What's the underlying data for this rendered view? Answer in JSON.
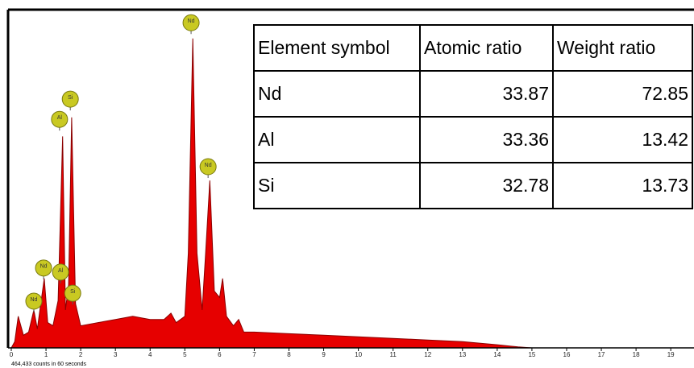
{
  "chart_data": {
    "type": "area",
    "color": "#e60000",
    "x": [
      0,
      0.1,
      0.2,
      0.35,
      0.5,
      0.65,
      0.75,
      0.85,
      0.95,
      1.05,
      1.2,
      1.35,
      1.48,
      1.56,
      1.65,
      1.74,
      1.85,
      2.0,
      2.5,
      3.0,
      3.5,
      4.0,
      4.4,
      4.6,
      4.75,
      5.0,
      5.1,
      5.23,
      5.35,
      5.5,
      5.6,
      5.72,
      5.85,
      6.0,
      6.09,
      6.2,
      6.4,
      6.55,
      6.7,
      7,
      8,
      9,
      10,
      11,
      12,
      13,
      14,
      14.6,
      15,
      19.6
    ],
    "values": [
      0,
      2,
      10,
      4,
      5,
      12,
      6,
      14,
      22,
      8,
      7,
      15,
      67,
      12,
      20,
      73,
      14,
      7,
      8,
      9,
      10,
      9,
      9,
      11,
      8,
      10,
      30,
      98,
      30,
      12,
      30,
      53,
      18,
      16,
      22,
      10,
      7,
      9,
      5,
      5,
      4.5,
      4,
      3.5,
      3,
      2.5,
      2,
      1,
      0.3,
      0,
      0
    ],
    "xlim": [
      0,
      19.6
    ],
    "ylim": [
      0,
      100
    ],
    "xticks": [
      0,
      1,
      2,
      3,
      4,
      5,
      6,
      7,
      8,
      9,
      10,
      11,
      12,
      13,
      14,
      15,
      16,
      17,
      18,
      19
    ],
    "annotations": [
      {
        "text": "Nd",
        "x": 0.65,
        "y": 14.8
      },
      {
        "text": "Nd",
        "x": 0.93,
        "y": 25.3
      },
      {
        "text": "Al",
        "x": 1.42,
        "y": 24
      },
      {
        "text": "Si",
        "x": 1.77,
        "y": 17.3
      },
      {
        "text": "Al",
        "x": 1.39,
        "y": 72.4
      },
      {
        "text": "Si",
        "x": 1.7,
        "y": 78.8
      },
      {
        "text": "Nd",
        "x": 5.18,
        "y": 103
      },
      {
        "text": "Nd",
        "x": 5.67,
        "y": 57.4
      }
    ],
    "footnote": "464,433 counts in 60 seconds"
  },
  "table": {
    "header": [
      "Element symbol",
      "Atomic ratio",
      "Weight ratio"
    ],
    "rows": [
      [
        "Nd",
        "33.87",
        "72.85"
      ],
      [
        "Al",
        "33.36",
        "13.42"
      ],
      [
        "Si",
        "32.78",
        "13.73"
      ]
    ]
  }
}
